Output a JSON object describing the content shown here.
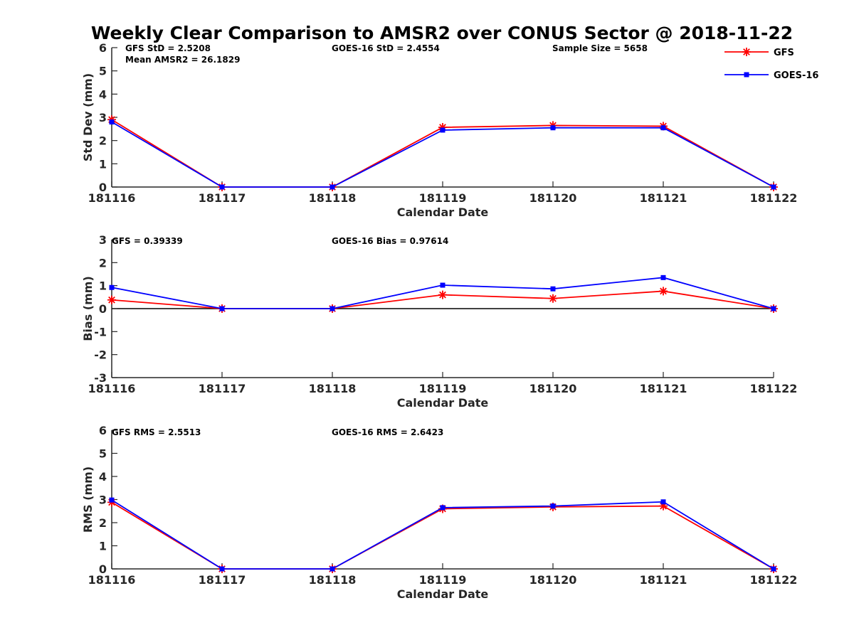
{
  "figure": {
    "title": "Weekly Clear Comparison to AMSR2 over CONUS Sector @ 2018-11-22",
    "legend": {
      "placement": "top-right",
      "entries": [
        {
          "label": "GFS",
          "color": "#ff0000",
          "marker": "asterisk"
        },
        {
          "label": "GOES-16",
          "color": "#0000ff",
          "marker": "square"
        }
      ]
    }
  },
  "chart_data": [
    {
      "type": "line",
      "xlabel": "Calendar Date",
      "ylabel": "Std Dev (mm)",
      "categories": [
        "181116",
        "181117",
        "181118",
        "181119",
        "181120",
        "181121",
        "181122"
      ],
      "ylim": [
        0,
        6
      ],
      "yticks": [
        "0",
        "1",
        "2",
        "3",
        "4",
        "5",
        "6"
      ],
      "zero_line": false,
      "annotations": [
        "GFS StD = 2.5208",
        "Mean AMSR2 = 26.1829",
        "GOES-16 StD = 2.4554",
        "Sample Size = 5658"
      ],
      "series": [
        {
          "name": "GFS",
          "color": "#ff0000",
          "marker": "asterisk",
          "values": [
            2.9,
            0,
            0,
            2.57,
            2.65,
            2.62,
            0
          ]
        },
        {
          "name": "GOES-16",
          "color": "#0000ff",
          "marker": "square",
          "values": [
            2.8,
            0,
            0,
            2.45,
            2.55,
            2.55,
            0
          ]
        }
      ]
    },
    {
      "type": "line",
      "xlabel": "Calendar Date",
      "ylabel": "Bias (mm)",
      "categories": [
        "181116",
        "181117",
        "181118",
        "181119",
        "181120",
        "181121",
        "181122"
      ],
      "ylim": [
        -3,
        3
      ],
      "yticks": [
        "-3",
        "-2",
        "-1",
        "0",
        "1",
        "2",
        "3"
      ],
      "zero_line": true,
      "annotations": [
        "GFS = 0.39339",
        "GOES-16 Bias  = 0.97614"
      ],
      "series": [
        {
          "name": "GFS",
          "color": "#ff0000",
          "marker": "asterisk",
          "values": [
            0.38,
            0,
            0,
            0.6,
            0.44,
            0.76,
            0
          ]
        },
        {
          "name": "GOES-16",
          "color": "#0000ff",
          "marker": "square",
          "values": [
            0.92,
            0,
            0,
            1.02,
            0.86,
            1.35,
            0
          ]
        }
      ]
    },
    {
      "type": "line",
      "xlabel": "Calendar Date",
      "ylabel": "RMS (mm)",
      "categories": [
        "181116",
        "181117",
        "181118",
        "181119",
        "181120",
        "181121",
        "181122"
      ],
      "ylim": [
        0,
        6
      ],
      "yticks": [
        "0",
        "1",
        "2",
        "3",
        "4",
        "5",
        "6"
      ],
      "zero_line": false,
      "annotations": [
        "GFS RMS = 2.5513",
        "GOES-16 RMS = 2.6423"
      ],
      "series": [
        {
          "name": "GFS",
          "color": "#ff0000",
          "marker": "asterisk",
          "values": [
            2.88,
            0,
            0,
            2.6,
            2.68,
            2.72,
            0
          ]
        },
        {
          "name": "GOES-16",
          "color": "#0000ff",
          "marker": "square",
          "values": [
            2.98,
            0,
            0,
            2.65,
            2.72,
            2.9,
            0
          ]
        }
      ]
    }
  ]
}
